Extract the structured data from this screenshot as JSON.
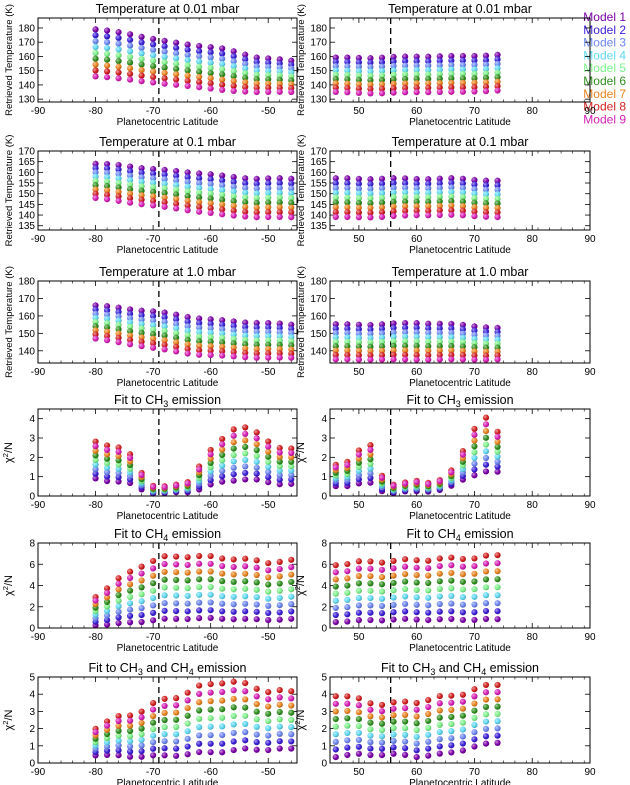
{
  "chart_data": {
    "type": "scatter",
    "legend": {
      "placement": "top-right",
      "entries": [
        {
          "name": "Model 1",
          "color": "#7b00a8"
        },
        {
          "name": "Model 2",
          "color": "#3a1fd6"
        },
        {
          "name": "Model 3",
          "color": "#6d86f0"
        },
        {
          "name": "Model 4",
          "color": "#5fd8f2"
        },
        {
          "name": "Model 5",
          "color": "#7ef08a"
        },
        {
          "name": "Model 6",
          "color": "#2f8e1e"
        },
        {
          "name": "Model 7",
          "color": "#e8821e"
        },
        {
          "name": "Model 8",
          "color": "#d21e1e"
        },
        {
          "name": "Model 9",
          "color": "#d61eb4"
        }
      ]
    },
    "xlabel": "Planetocentric Latitude",
    "hemispheres": [
      {
        "name": "south",
        "xlim": [
          -90,
          -45
        ],
        "xticks": [
          -90,
          -80,
          -70,
          -60,
          -50
        ],
        "marker_line": -69,
        "x": [
          -80,
          -78,
          -76,
          -74,
          -72,
          -70,
          -68,
          -66,
          -64,
          -62,
          -60,
          -58,
          -56,
          -54,
          -52,
          -50,
          -48,
          -46
        ]
      },
      {
        "name": "north",
        "xlim": [
          45,
          90
        ],
        "xticks": [
          50,
          60,
          70,
          80,
          90
        ],
        "marker_line": 55.5,
        "x": [
          46,
          48,
          50,
          52,
          54,
          56,
          58,
          60,
          62,
          64,
          66,
          68,
          70,
          72,
          74
        ]
      }
    ],
    "panels": [
      {
        "title": "Temperature at 0.01 mbar",
        "ylabel": "Retrieved Temperature (K)",
        "kind": "temp",
        "ylim": [
          128,
          187
        ],
        "yticks": [
          130,
          140,
          150,
          160,
          170,
          180
        ],
        "profiles": {
          "south": [
            [
              179,
              176,
              171,
              168,
              165,
              159,
              157
            ],
            [
              146,
              144,
              141,
              139,
              136,
              135,
              135
            ]
          ],
          "north": [
            [
              159,
              159,
              160,
              160,
              161
            ],
            [
              135,
              134,
              135,
              135,
              136
            ]
          ]
        }
      },
      {
        "title": "Temperature at 0.1 mbar",
        "ylabel": "Retrieved Temperature (K)",
        "kind": "temp",
        "ylim": [
          133,
          170
        ],
        "yticks": [
          135,
          140,
          145,
          150,
          155,
          160,
          165,
          170
        ],
        "profiles": {
          "south": [
            [
              164,
              163,
              161,
              160,
              158,
              157,
              157
            ],
            [
              148,
              146,
              144,
              142,
              140,
              139,
              139
            ]
          ],
          "north": [
            [
              157,
              157,
              157,
              157,
              156
            ],
            [
              139,
              139,
              140,
              140,
              139
            ]
          ]
        }
      },
      {
        "title": "Temperature at 1.0 mbar",
        "ylabel": "Retrieved Temperature (K)",
        "kind": "temp",
        "ylim": [
          133,
          180
        ],
        "yticks": [
          140,
          150,
          160,
          170,
          180
        ],
        "profiles": {
          "south": [
            [
              166,
              164,
              162,
              159,
              157,
              156,
              155
            ],
            [
              147,
              144,
              141,
              138,
              137,
              136,
              136
            ]
          ],
          "north": [
            [
              155,
              155,
              156,
              155,
              153
            ],
            [
              135,
              135,
              135,
              135,
              135
            ]
          ]
        }
      },
      {
        "title": "Fit to CH3 emission",
        "title_parts": {
          "pre": "Fit to CH",
          "sub": "3",
          "post": " emission"
        },
        "ylabel_parts": {
          "base": "χ",
          "sup": "2",
          "post": "/N"
        },
        "kind": "fit",
        "ylim": [
          0,
          4.5
        ],
        "yticks": [
          0,
          1,
          2,
          3,
          4
        ],
        "profiles": {
          "south": [
            [
              2.8,
              2.7,
              2.0,
              0.7,
              0.4,
              0.6,
              1.8,
              2.8,
              3.8,
              3.2,
              2.7,
              2.4
            ],
            [
              0.9,
              0.8,
              0.6,
              0.2,
              0.1,
              0.2,
              0.4,
              0.7,
              0.9,
              0.8,
              0.7,
              0.6
            ]
          ],
          "north": [
            [
              1.6,
              2.0,
              2.8,
              0.8,
              0.6,
              0.7,
              0.8,
              1.0,
              2.5,
              4.4,
              3.2
            ],
            [
              0.5,
              0.6,
              0.7,
              0.2,
              0.2,
              0.2,
              0.3,
              0.4,
              0.9,
              1.3,
              1.2
            ]
          ]
        }
      },
      {
        "title": "Fit to CH4 emission",
        "title_parts": {
          "pre": "Fit to CH",
          "sub": "4",
          "post": " emission"
        },
        "ylabel_parts": {
          "base": "χ",
          "sup": "2",
          "post": "/N"
        },
        "kind": "fit",
        "ylim": [
          0,
          8
        ],
        "yticks": [
          0,
          2,
          4,
          6,
          8
        ],
        "profiles": {
          "south": [
            [
              3.0,
              4.5,
              5.8,
              6.6,
              6.8,
              6.7,
              6.6,
              6.4,
              6.2,
              6.3
            ],
            [
              0.3,
              0.4,
              0.6,
              0.8,
              0.9,
              0.9,
              0.9,
              0.8,
              0.8,
              0.8
            ]
          ],
          "north": [
            [
              6.0,
              6.2,
              6.3,
              6.4,
              6.5,
              6.6,
              6.8
            ],
            [
              0.6,
              0.7,
              0.8,
              0.8,
              0.8,
              0.8,
              0.8
            ]
          ]
        }
      },
      {
        "title": "Fit to CH3 and CH4 emission",
        "title_parts": {
          "pre": "Fit to CH",
          "sub": "3",
          "post": " and CH",
          "sub2": "4",
          "post2": " emission"
        },
        "ylabel_parts": {
          "base": "χ",
          "sup": "2",
          "post": "/N"
        },
        "kind": "fit",
        "ylim": [
          0,
          5
        ],
        "yticks": [
          0,
          1,
          2,
          3,
          4,
          5
        ],
        "profiles": {
          "south": [
            [
              2.1,
              2.6,
              3.0,
              3.6,
              4.0,
              4.5,
              4.8,
              4.5,
              4.2,
              4.1
            ],
            [
              0.5,
              0.4,
              0.4,
              0.4,
              0.5,
              0.6,
              0.7,
              0.8,
              0.8,
              0.8
            ]
          ],
          "north": [
            [
              4.0,
              3.6,
              3.4,
              3.6,
              3.8,
              4.2,
              4.6
            ],
            [
              0.4,
              0.5,
              0.5,
              0.4,
              0.5,
              0.9,
              1.2
            ]
          ]
        }
      }
    ]
  }
}
